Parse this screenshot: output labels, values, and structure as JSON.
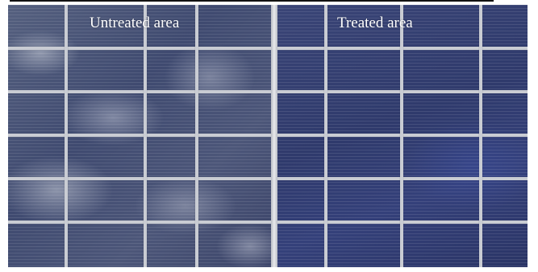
{
  "figure": {
    "untreated_label": "Untreated area",
    "treated_label": "Treated area"
  },
  "panels": [
    {
      "name": "untreated-area-panel",
      "surface": "dusty, whitish residue over blue cells"
    },
    {
      "name": "treated-area-panel",
      "surface": "clean deep-blue cells"
    }
  ],
  "colors": {
    "cell_blue": "#2f3a6c",
    "busbar": "#c9ccd3",
    "label_text": "#ffffff"
  }
}
